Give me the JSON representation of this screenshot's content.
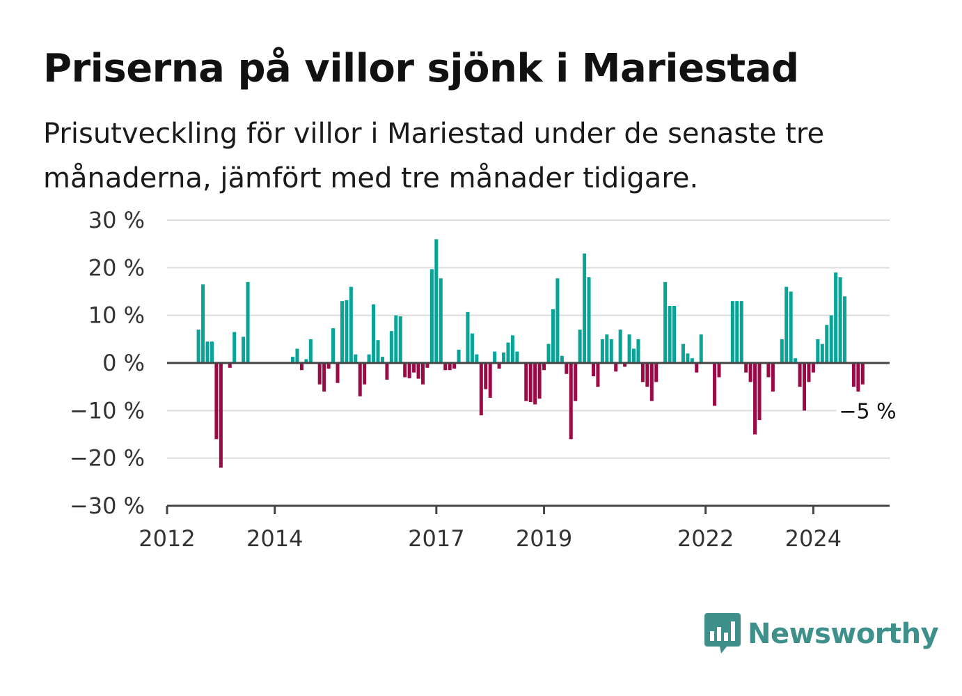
{
  "title": "Priserna på villor sjönk i Mariestad",
  "subtitle": "Prisutveckling för villor i Mariestad under de senaste tre månaderna, jämfört med tre månader tidigare.",
  "brand": {
    "name": "Newsworthy",
    "color": "#3f8f8a"
  },
  "colors": {
    "positive": "#0aa398",
    "negative": "#9b0a47",
    "grid": "#dcdcdc",
    "axis": "#444444"
  },
  "chart_data": {
    "type": "bar",
    "x_start": "2012-01",
    "x_end": "2025-06",
    "ylim": [
      -30,
      30
    ],
    "yticks": [
      30,
      20,
      10,
      0,
      -10,
      -20,
      -30
    ],
    "ytick_labels": [
      "30 %",
      "20 %",
      "10 %",
      "0 %",
      "−10 %",
      "−20 %",
      "−30 %"
    ],
    "xticks": [
      "2012-01",
      "2014-01",
      "2017-01",
      "2019-01",
      "2022-01",
      "2024-01"
    ],
    "xtick_labels": [
      "2012",
      "2014",
      "2017",
      "2019",
      "2022",
      "2024"
    ],
    "last_value_label": "−5 %",
    "grid": true,
    "series": [
      {
        "points": [
          [
            "2012-08",
            7
          ],
          [
            "2012-09",
            16.5
          ],
          [
            "2012-10",
            4.5
          ],
          [
            "2012-11",
            4.5
          ],
          [
            "2012-12",
            -16
          ],
          [
            "2013-01",
            -22
          ],
          [
            "2013-03",
            -1
          ],
          [
            "2013-04",
            6.5
          ],
          [
            "2013-06",
            5.5
          ],
          [
            "2013-07",
            17
          ],
          [
            "2014-05",
            1.3
          ],
          [
            "2014-06",
            3
          ],
          [
            "2014-07",
            -1.5
          ],
          [
            "2014-08",
            0.8
          ],
          [
            "2014-09",
            5
          ],
          [
            "2014-11",
            -4.5
          ],
          [
            "2014-12",
            -6
          ],
          [
            "2015-01",
            -1.2
          ],
          [
            "2015-02",
            7.3
          ],
          [
            "2015-03",
            -4.2
          ],
          [
            "2015-04",
            13
          ],
          [
            "2015-05",
            13.2
          ],
          [
            "2015-06",
            16
          ],
          [
            "2015-07",
            1.8
          ],
          [
            "2015-08",
            -7
          ],
          [
            "2015-09",
            -4.5
          ],
          [
            "2015-10",
            1.8
          ],
          [
            "2015-11",
            12.3
          ],
          [
            "2015-12",
            4.8
          ],
          [
            "2016-01",
            1.3
          ],
          [
            "2016-02",
            -3.5
          ],
          [
            "2016-03",
            6.7
          ],
          [
            "2016-04",
            10
          ],
          [
            "2016-05",
            9.8
          ],
          [
            "2016-06",
            -3
          ],
          [
            "2016-07",
            -3.2
          ],
          [
            "2016-08",
            -2
          ],
          [
            "2016-09",
            -3.3
          ],
          [
            "2016-10",
            -4.5
          ],
          [
            "2016-11",
            -1
          ],
          [
            "2016-12",
            19.7
          ],
          [
            "2017-01",
            26
          ],
          [
            "2017-02",
            17.8
          ],
          [
            "2017-03",
            -1.5
          ],
          [
            "2017-04",
            -1.5
          ],
          [
            "2017-05",
            -1.2
          ],
          [
            "2017-06",
            2.8
          ],
          [
            "2017-08",
            10.7
          ],
          [
            "2017-09",
            6.2
          ],
          [
            "2017-10",
            1.8
          ],
          [
            "2017-11",
            -11
          ],
          [
            "2017-12",
            -5.5
          ],
          [
            "2018-01",
            -7.3
          ],
          [
            "2018-02",
            2.4
          ],
          [
            "2018-03",
            -1.2
          ],
          [
            "2018-04",
            2.2
          ],
          [
            "2018-05",
            4.3
          ],
          [
            "2018-06",
            5.8
          ],
          [
            "2018-07",
            2.4
          ],
          [
            "2018-09",
            -8
          ],
          [
            "2018-10",
            -8.2
          ],
          [
            "2018-11",
            -8.7
          ],
          [
            "2018-12",
            -7.5
          ],
          [
            "2019-01",
            -1.5
          ],
          [
            "2019-02",
            4
          ],
          [
            "2019-03",
            11.3
          ],
          [
            "2019-04",
            17.8
          ],
          [
            "2019-05",
            1.5
          ],
          [
            "2019-06",
            -2.3
          ],
          [
            "2019-07",
            -16
          ],
          [
            "2019-08",
            -8
          ],
          [
            "2019-09",
            7
          ],
          [
            "2019-10",
            23
          ],
          [
            "2019-11",
            18
          ],
          [
            "2019-12",
            -2.8
          ],
          [
            "2020-01",
            -5
          ],
          [
            "2020-02",
            5
          ],
          [
            "2020-03",
            6
          ],
          [
            "2020-04",
            5
          ],
          [
            "2020-05",
            -1.8
          ],
          [
            "2020-06",
            7
          ],
          [
            "2020-07",
            -0.8
          ],
          [
            "2020-08",
            6
          ],
          [
            "2020-09",
            3
          ],
          [
            "2020-10",
            5
          ],
          [
            "2020-11",
            -4
          ],
          [
            "2020-12",
            -5
          ],
          [
            "2021-01",
            -8
          ],
          [
            "2021-02",
            -4
          ],
          [
            "2021-04",
            17
          ],
          [
            "2021-05",
            12
          ],
          [
            "2021-06",
            12
          ],
          [
            "2021-08",
            4
          ],
          [
            "2021-09",
            2
          ],
          [
            "2021-10",
            1
          ],
          [
            "2021-11",
            -2
          ],
          [
            "2021-12",
            6
          ],
          [
            "2022-03",
            -9
          ],
          [
            "2022-04",
            -3
          ],
          [
            "2022-07",
            13
          ],
          [
            "2022-08",
            13
          ],
          [
            "2022-09",
            13
          ],
          [
            "2022-10",
            -2
          ],
          [
            "2022-11",
            -4
          ],
          [
            "2022-12",
            -15
          ],
          [
            "2023-01",
            -12
          ],
          [
            "2023-03",
            -3
          ],
          [
            "2023-04",
            -6
          ],
          [
            "2023-06",
            5
          ],
          [
            "2023-07",
            16
          ],
          [
            "2023-08",
            15
          ],
          [
            "2023-09",
            1
          ],
          [
            "2023-10",
            -5
          ],
          [
            "2023-11",
            -10
          ],
          [
            "2023-12",
            -4
          ],
          [
            "2024-01",
            -2
          ],
          [
            "2024-02",
            5
          ],
          [
            "2024-03",
            4
          ],
          [
            "2024-04",
            8
          ],
          [
            "2024-05",
            10
          ],
          [
            "2024-06",
            19
          ],
          [
            "2024-07",
            18
          ],
          [
            "2024-08",
            14
          ],
          [
            "2024-10",
            -5
          ],
          [
            "2024-11",
            -6
          ],
          [
            "2024-12",
            -4.5
          ]
        ]
      }
    ]
  }
}
